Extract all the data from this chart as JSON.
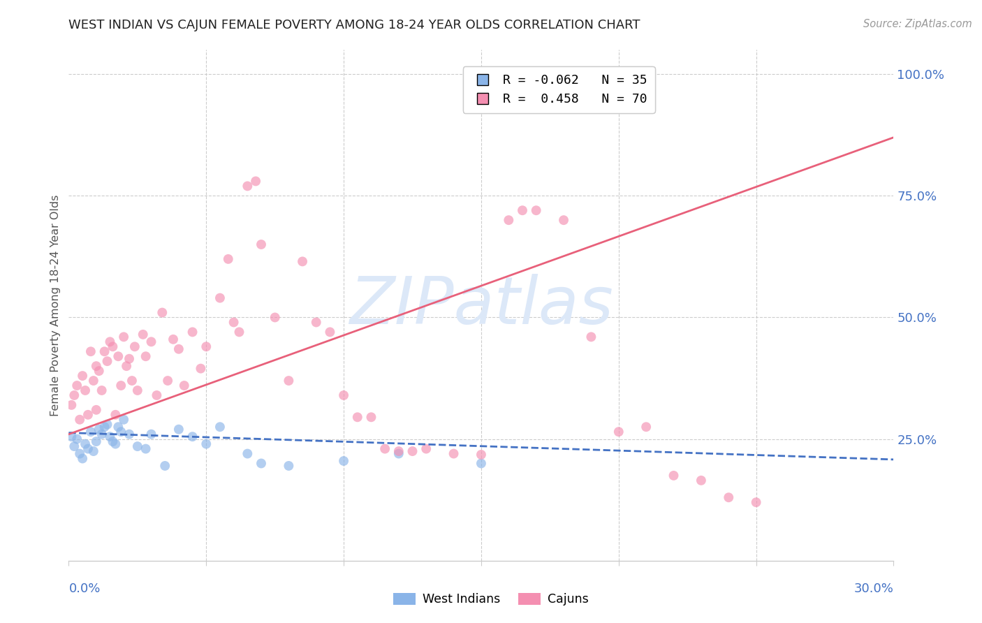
{
  "title": "WEST INDIAN VS CAJUN FEMALE POVERTY AMONG 18-24 YEAR OLDS CORRELATION CHART",
  "source": "Source: ZipAtlas.com",
  "ylabel": "Female Poverty Among 18-24 Year Olds",
  "yaxis_values": [
    1.0,
    0.75,
    0.5,
    0.25
  ],
  "xlim": [
    0.0,
    0.3
  ],
  "ylim": [
    0.0,
    1.05
  ],
  "legend_entry1": "R = -0.062   N = 35",
  "legend_entry2": "R =  0.458   N = 70",
  "wi_color": "#8ab4e8",
  "cajun_color": "#f48fb1",
  "wi_line_color": "#4472c4",
  "cajun_line_color": "#e8607a",
  "grid_color": "#cccccc",
  "bg_color": "#ffffff",
  "title_color": "#222222",
  "axis_label_color": "#4472c4",
  "watermark_color": "#dce8f8",
  "west_indians_x": [
    0.001,
    0.002,
    0.003,
    0.004,
    0.005,
    0.006,
    0.007,
    0.008,
    0.009,
    0.01,
    0.011,
    0.012,
    0.013,
    0.014,
    0.015,
    0.016,
    0.017,
    0.018,
    0.019,
    0.02,
    0.022,
    0.025,
    0.028,
    0.03,
    0.035,
    0.04,
    0.045,
    0.05,
    0.055,
    0.065,
    0.07,
    0.08,
    0.1,
    0.12,
    0.15
  ],
  "west_indians_y": [
    0.255,
    0.235,
    0.25,
    0.22,
    0.21,
    0.24,
    0.23,
    0.265,
    0.225,
    0.245,
    0.27,
    0.26,
    0.275,
    0.28,
    0.255,
    0.245,
    0.24,
    0.275,
    0.265,
    0.29,
    0.26,
    0.235,
    0.23,
    0.26,
    0.195,
    0.27,
    0.255,
    0.24,
    0.275,
    0.22,
    0.2,
    0.195,
    0.205,
    0.22,
    0.2
  ],
  "cajuns_x": [
    0.001,
    0.002,
    0.003,
    0.004,
    0.005,
    0.006,
    0.007,
    0.008,
    0.009,
    0.01,
    0.01,
    0.011,
    0.012,
    0.013,
    0.014,
    0.015,
    0.016,
    0.017,
    0.018,
    0.019,
    0.02,
    0.021,
    0.022,
    0.023,
    0.024,
    0.025,
    0.027,
    0.028,
    0.03,
    0.032,
    0.034,
    0.036,
    0.038,
    0.04,
    0.042,
    0.045,
    0.048,
    0.05,
    0.055,
    0.058,
    0.06,
    0.062,
    0.065,
    0.068,
    0.07,
    0.075,
    0.08,
    0.085,
    0.09,
    0.095,
    0.1,
    0.105,
    0.11,
    0.115,
    0.12,
    0.125,
    0.13,
    0.14,
    0.15,
    0.16,
    0.165,
    0.17,
    0.18,
    0.19,
    0.2,
    0.21,
    0.22,
    0.23,
    0.24,
    0.25
  ],
  "cajuns_y": [
    0.32,
    0.34,
    0.36,
    0.29,
    0.38,
    0.35,
    0.3,
    0.43,
    0.37,
    0.31,
    0.4,
    0.39,
    0.35,
    0.43,
    0.41,
    0.45,
    0.44,
    0.3,
    0.42,
    0.36,
    0.46,
    0.4,
    0.415,
    0.37,
    0.44,
    0.35,
    0.465,
    0.42,
    0.45,
    0.34,
    0.51,
    0.37,
    0.455,
    0.435,
    0.36,
    0.47,
    0.395,
    0.44,
    0.54,
    0.62,
    0.49,
    0.47,
    0.77,
    0.78,
    0.65,
    0.5,
    0.37,
    0.615,
    0.49,
    0.47,
    0.34,
    0.295,
    0.295,
    0.23,
    0.225,
    0.225,
    0.23,
    0.22,
    0.218,
    0.7,
    0.72,
    0.72,
    0.7,
    0.46,
    0.265,
    0.275,
    0.175,
    0.165,
    0.13,
    0.12
  ],
  "wi_trendline_x": [
    0.0,
    0.3
  ],
  "wi_trendline_y": [
    0.263,
    0.208
  ],
  "cajun_trendline_x": [
    0.0,
    0.3
  ],
  "cajun_trendline_y": [
    0.26,
    0.87
  ],
  "scatter_alpha": 0.65,
  "scatter_size": 100
}
